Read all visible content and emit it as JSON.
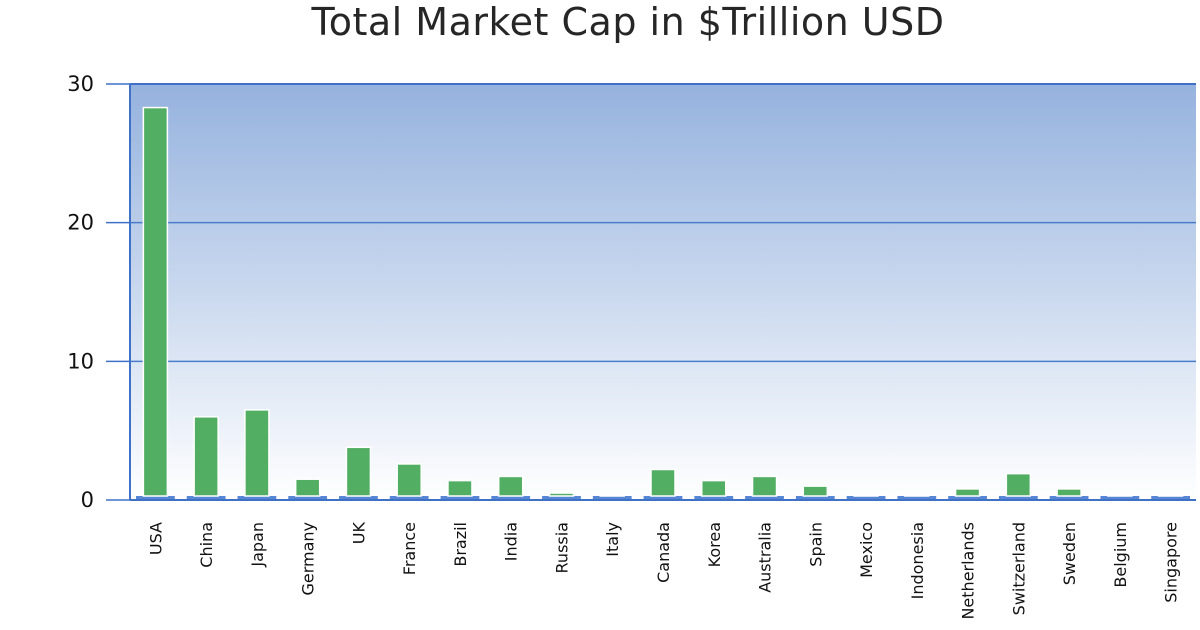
{
  "chart_data": {
    "type": "bar",
    "title": "Total Market Cap in $Trillion USD",
    "xlabel": "",
    "ylabel": "",
    "ylim": [
      0,
      30
    ],
    "yticks": [
      0,
      10,
      20,
      30
    ],
    "grid": true,
    "categories": [
      "USA",
      "China",
      "Japan",
      "Germany",
      "UK",
      "France",
      "Brazil",
      "India",
      "Russia",
      "Italy",
      "Canada",
      "Korea",
      "Australia",
      "Spain",
      "Mexico",
      "Indonesia",
      "Netherlands",
      "Switzerland",
      "Sweden",
      "Belgium",
      "Singapore"
    ],
    "values": [
      28.3,
      6.0,
      6.5,
      1.5,
      3.8,
      2.6,
      1.4,
      1.7,
      0.5,
      0.1,
      2.2,
      1.4,
      1.7,
      1.0,
      0.3,
      0.1,
      0.8,
      1.9,
      0.8,
      0.3,
      0.3
    ],
    "colors": {
      "bar": "#52ae63",
      "bar_edge": "#ffffff",
      "bg_top": "#95b2de",
      "bg_bottom": "#ffffff",
      "axis": "#3f72c7",
      "grid": "#4b7ccc"
    }
  }
}
